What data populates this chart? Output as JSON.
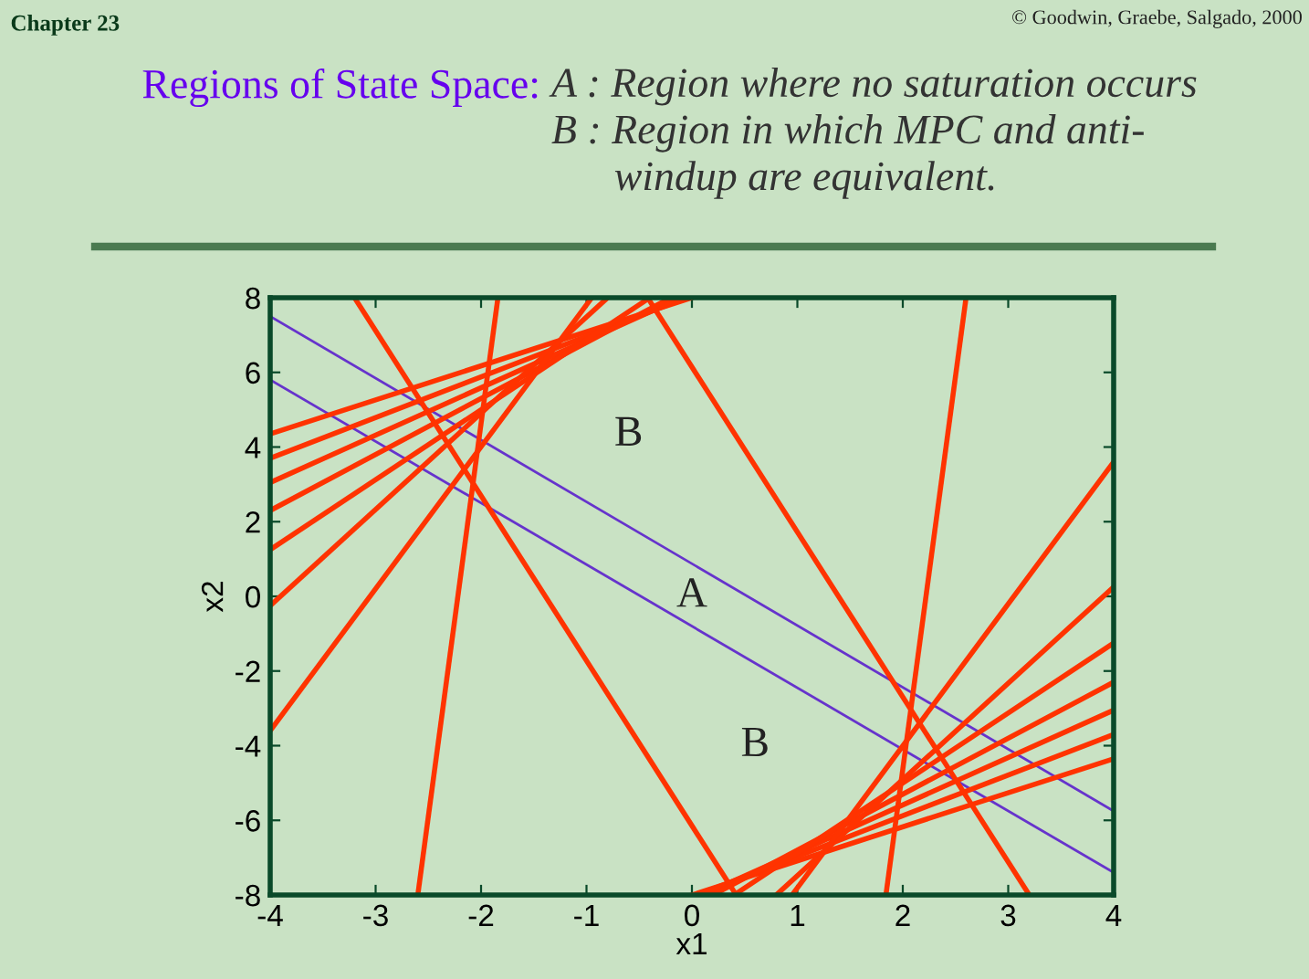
{
  "chart_data": {
    "type": "line",
    "title": "Regions of State Space:",
    "subtitle": "A : Region where no saturation occurs\nB : Region in which MPC and anti-\n      windup are equivalent.",
    "xlabel": "x1",
    "ylabel": "x2",
    "xlim": [
      -4,
      4
    ],
    "ylim": [
      -8,
      8
    ],
    "xticks": [
      -4,
      -3,
      -2,
      -1,
      0,
      1,
      2,
      3,
      4
    ],
    "yticks": [
      -8,
      -6,
      -4,
      -2,
      0,
      2,
      4,
      6,
      8
    ],
    "grid": false,
    "marker": "none",
    "line_style": "solid",
    "series": [
      {
        "color": "#6633cc",
        "x": [
          -4,
          4
        ],
        "values": [
          7.5,
          -5.75
        ]
      },
      {
        "color": "#6633cc",
        "x": [
          -4,
          4
        ],
        "values": [
          5.8,
          -7.4
        ]
      },
      {
        "color": "#ff3300",
        "x": [
          -4,
          0.0
        ],
        "values": [
          4.35,
          8
        ]
      },
      {
        "color": "#ff3300",
        "x": [
          -4,
          -0.05
        ],
        "values": [
          3.7,
          8
        ]
      },
      {
        "color": "#ff3300",
        "x": [
          -4,
          -0.1
        ],
        "values": [
          3.05,
          8
        ]
      },
      {
        "color": "#ff3300",
        "x": [
          -4,
          -0.2
        ],
        "values": [
          2.3,
          8
        ]
      },
      {
        "color": "#ff3300",
        "x": [
          -4,
          -0.4
        ],
        "values": [
          1.25,
          8
        ]
      },
      {
        "color": "#ff3300",
        "x": [
          -4,
          -0.8
        ],
        "values": [
          -0.25,
          8
        ]
      },
      {
        "color": "#ff3300",
        "x": [
          -4,
          -0.95
        ],
        "values": [
          -3.6,
          8
        ]
      },
      {
        "color": "#ff3300",
        "x": [
          4,
          0.0
        ],
        "values": [
          -4.35,
          -8
        ]
      },
      {
        "color": "#ff3300",
        "x": [
          4,
          0.05
        ],
        "values": [
          -3.7,
          -8
        ]
      },
      {
        "color": "#ff3300",
        "x": [
          4,
          0.1
        ],
        "values": [
          -3.05,
          -8
        ]
      },
      {
        "color": "#ff3300",
        "x": [
          4,
          0.2
        ],
        "values": [
          -2.3,
          -8
        ]
      },
      {
        "color": "#ff3300",
        "x": [
          4,
          0.4
        ],
        "values": [
          -1.25,
          -8
        ]
      },
      {
        "color": "#ff3300",
        "x": [
          4,
          0.8
        ],
        "values": [
          0.25,
          -8
        ]
      },
      {
        "color": "#ff3300",
        "x": [
          4,
          0.95
        ],
        "values": [
          3.6,
          -8
        ]
      },
      {
        "color": "#ff3300",
        "x": [
          -3.2,
          0.42
        ],
        "values": [
          8,
          -8
        ]
      },
      {
        "color": "#ff3300",
        "x": [
          -0.42,
          3.2
        ],
        "values": [
          8,
          -8
        ]
      },
      {
        "color": "#ff3300",
        "x": [
          -2.6,
          -1.84
        ],
        "values": [
          -8,
          8
        ]
      },
      {
        "color": "#ff3300",
        "x": [
          1.84,
          2.6
        ],
        "values": [
          -8,
          8
        ]
      }
    ],
    "annotations": [
      "B",
      "A",
      "B",
      "Chapter 23",
      "© Goodwin, Graebe, Salgado, 2000"
    ]
  }
}
